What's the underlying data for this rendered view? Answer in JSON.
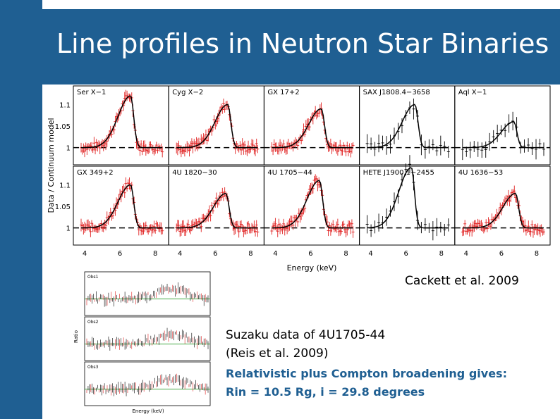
{
  "slide": {
    "title": "Line profiles in Neutron Star Binaries",
    "colors": {
      "accent": "#1f5f92",
      "data_red": "#e02020",
      "model_black": "#000000"
    }
  },
  "figure_main": {
    "ylabel": "Data / Continuum model",
    "xlabel": "Energy (keV)",
    "yticks": [
      "1.1",
      "1.05",
      "1"
    ],
    "xticks": [
      "4",
      "6",
      "8"
    ],
    "panels_top": [
      "Ser X−1",
      "Cyg X−2",
      "GX 17+2",
      "SAX J1808.4−3658",
      "Aql X−1"
    ],
    "panels_bottom": [
      "GX 349+2",
      "4U 1820−30",
      "4U 1705−44",
      "HETE J1900.1−2455",
      "4U 1636−53"
    ]
  },
  "figure_inset": {
    "panel_labels": [
      "Obs1",
      "Obs2",
      "Obs3"
    ],
    "ylabel": "Ratio",
    "xlabel": "Energy (keV)"
  },
  "captions": {
    "credit": "Cackett et al. 2009",
    "suzaku_line1": "Suzaku data of 4U1705-44",
    "suzaku_line2": "(Reis et al. 2009)",
    "result_line1": "Relativistic plus Compton broadening gives:",
    "result_line2": "Rin = 10.5 Rg,  i = 29.8 degrees"
  }
}
